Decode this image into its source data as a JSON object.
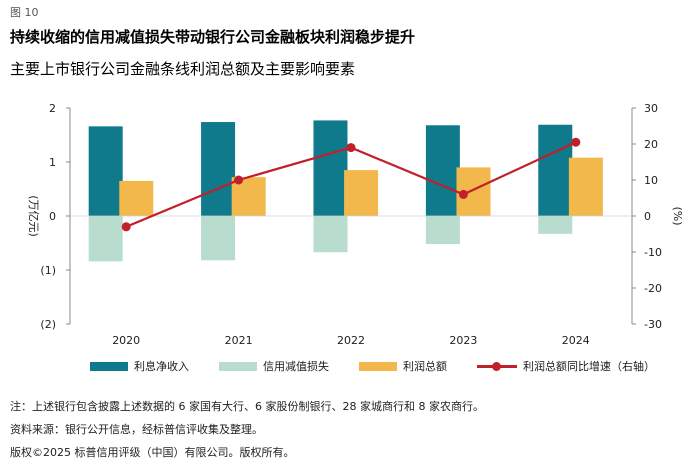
{
  "figure_label": "图 10",
  "title": "持续收缩的信用减值损失带动银行公司金融板块利润稳步提升",
  "subtitle": "主要上市银行公司金融条线利润总额及主要影响要素",
  "colors": {
    "net_interest": "#0e7a8c",
    "credit_impairment": "#b8dccd",
    "total_profit": "#f2b84b",
    "growth_line": "#c0202a",
    "axis": "#888888",
    "grid": "#bfbfbf"
  },
  "chart_data": {
    "type": "bar",
    "title": "主要上市银行公司金融条线利润总额及主要影响要素",
    "categories": [
      "2020",
      "2021",
      "2022",
      "2023",
      "2024"
    ],
    "series": [
      {
        "name": "利息净收入",
        "values": [
          1.66,
          1.74,
          1.77,
          1.68,
          1.69
        ]
      },
      {
        "name": "信用减值损失",
        "values": [
          -0.84,
          -0.82,
          -0.67,
          -0.52,
          -0.33
        ]
      },
      {
        "name": "利润总额",
        "values": [
          0.65,
          0.72,
          0.85,
          0.9,
          1.08
        ]
      },
      {
        "name": "利润总额同比增速（右轴）",
        "type": "line",
        "axis": "right",
        "values": [
          -3,
          10,
          19,
          6,
          20.5
        ]
      }
    ],
    "left_axis": {
      "label": "(万亿元)",
      "range": [
        -2,
        2
      ],
      "ticks": [
        "(2)",
        "(1)",
        "0",
        "1",
        "2"
      ]
    },
    "right_axis": {
      "label": "(%)",
      "range": [
        -30,
        30
      ],
      "ticks": [
        "-30",
        "-20",
        "-10",
        "0",
        "10",
        "20",
        "30"
      ]
    },
    "grid": false,
    "legend": "bottom"
  },
  "notes": {
    "note": "注：上述银行包含披露上述数据的 6 家国有大行、6 家股份制银行、28 家城商行和 8 家农商行。",
    "source": "资料来源：银行公开信息，经标普信评收集及整理。",
    "copyright": "版权©2025 标普信用评级（中国）有限公司。版权所有。"
  }
}
